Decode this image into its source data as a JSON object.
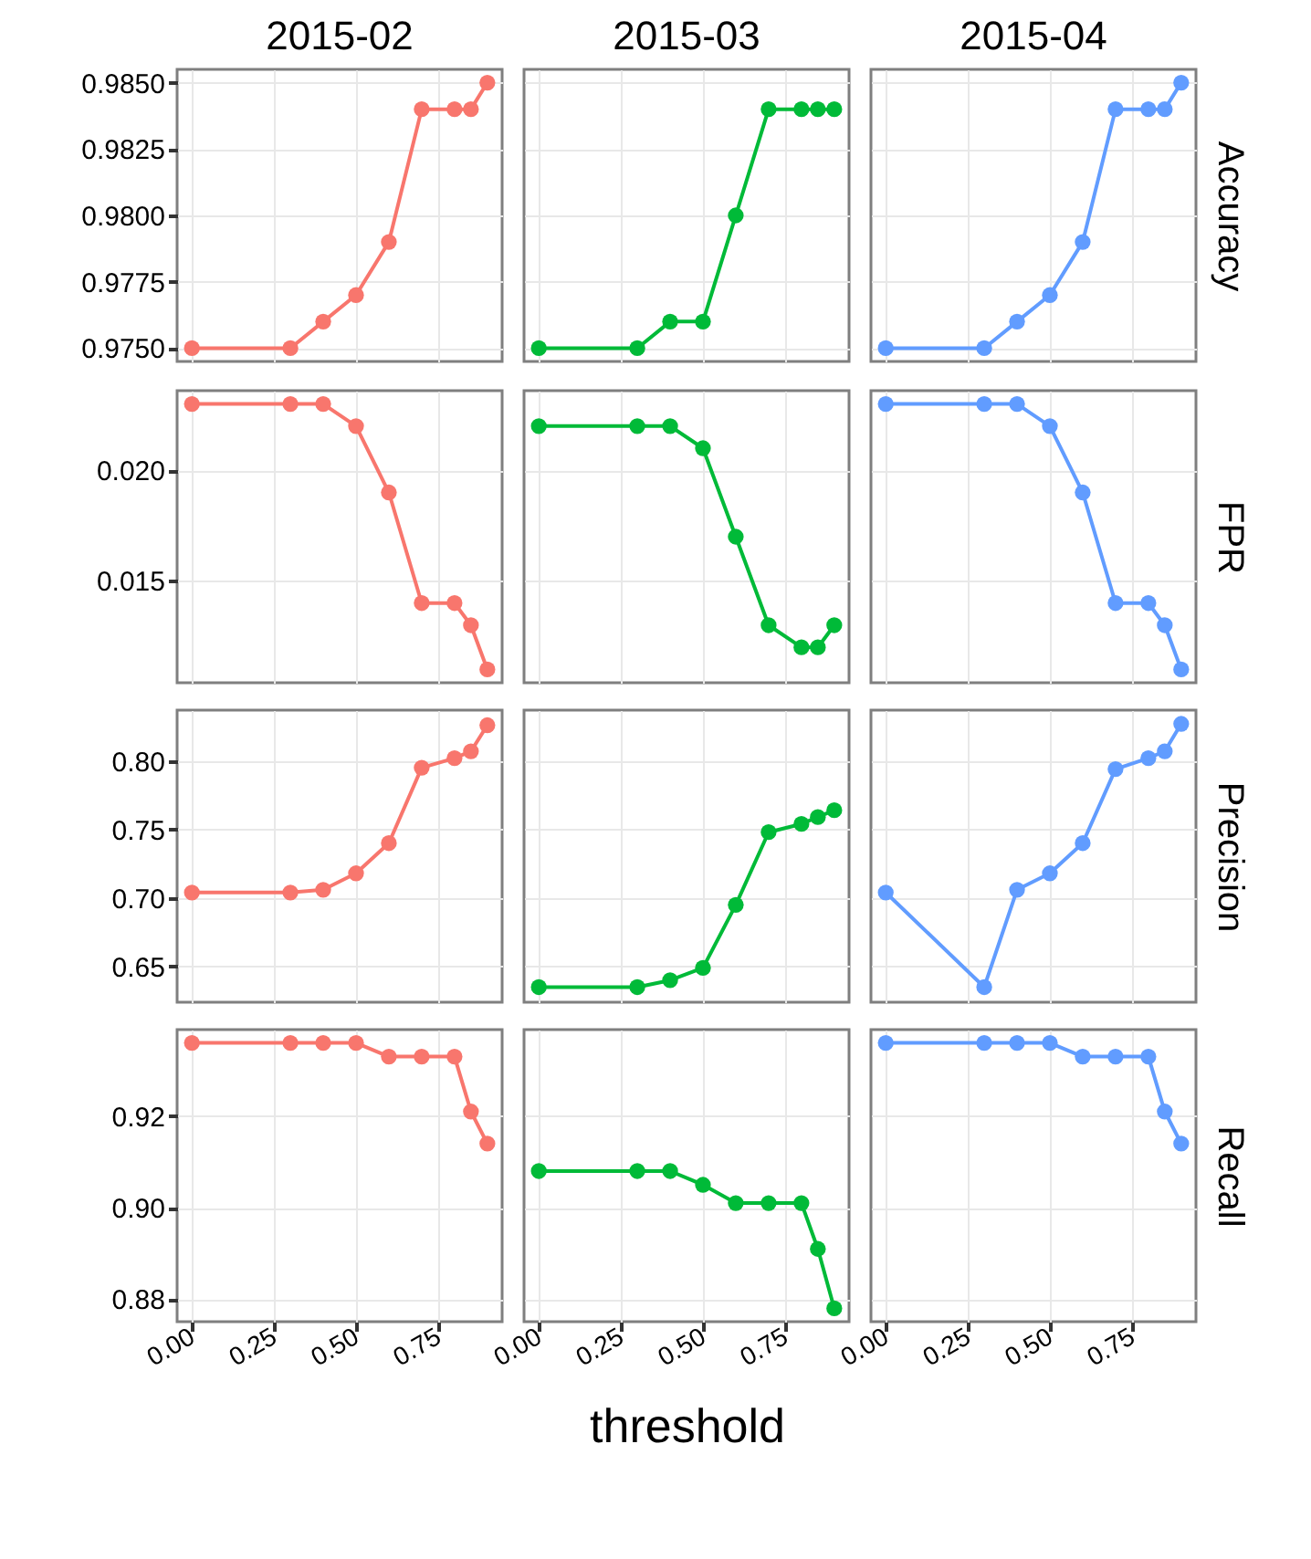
{
  "chart_data": [
    {
      "type": "line",
      "title": "2015-02",
      "x": [
        0,
        0.3,
        0.4,
        0.5,
        0.6,
        0.7,
        0.8,
        0.85,
        0.9
      ],
      "xlim": [
        -0.045,
        0.945
      ],
      "xticks": [
        0,
        0.25,
        0.5,
        0.75
      ],
      "ylim": [
        0.9745,
        0.9855
      ],
      "yticks": [
        {
          "value": 0.975,
          "label": "0.9750"
        },
        {
          "value": 0.9775,
          "label": "0.9775"
        },
        {
          "value": 0.98,
          "label": "0.9800"
        },
        {
          "value": 0.9825,
          "label": "0.9825"
        },
        {
          "value": 0.985,
          "label": "0.9850"
        }
      ],
      "tick_labels": "y",
      "grid": true,
      "marker": "circle",
      "line_style": "solid",
      "series": [
        {
          "color": "#f8766d",
          "values": [
            0.975,
            0.975,
            0.976,
            0.977,
            0.979,
            0.984,
            0.984,
            0.984,
            0.985
          ]
        }
      ]
    },
    {
      "type": "line",
      "title": "2015-03",
      "x": [
        0,
        0.3,
        0.4,
        0.5,
        0.6,
        0.7,
        0.8,
        0.85,
        0.9
      ],
      "xlim": [
        -0.045,
        0.945
      ],
      "xticks": [
        0,
        0.25,
        0.5,
        0.75
      ],
      "ylim": [
        0.9745,
        0.9855
      ],
      "yticks": [
        0.975,
        0.9775,
        0.98,
        0.9825,
        0.985
      ],
      "tick_labels": false,
      "grid": true,
      "marker": "circle",
      "line_style": "solid",
      "series": [
        {
          "color": "#00ba38",
          "values": [
            0.975,
            0.975,
            0.976,
            0.976,
            0.98,
            0.984,
            0.984,
            0.984,
            0.984
          ]
        }
      ]
    },
    {
      "type": "line",
      "title": "2015-04",
      "y2label": "Accuracy",
      "x": [
        0,
        0.3,
        0.4,
        0.5,
        0.6,
        0.7,
        0.8,
        0.85,
        0.9
      ],
      "xlim": [
        -0.045,
        0.945
      ],
      "xticks": [
        0,
        0.25,
        0.5,
        0.75
      ],
      "ylim": [
        0.9745,
        0.9855
      ],
      "yticks": [
        0.975,
        0.9775,
        0.98,
        0.9825,
        0.985
      ],
      "tick_labels": false,
      "grid": true,
      "marker": "circle",
      "line_style": "solid",
      "series": [
        {
          "color": "#619cff",
          "values": [
            0.975,
            0.975,
            0.976,
            0.977,
            0.979,
            0.984,
            0.984,
            0.984,
            0.985
          ]
        }
      ]
    },
    {
      "type": "line",
      "x": [
        0,
        0.3,
        0.4,
        0.5,
        0.6,
        0.7,
        0.8,
        0.85,
        0.9
      ],
      "xlim": [
        -0.045,
        0.945
      ],
      "xticks": [
        0,
        0.25,
        0.5,
        0.75
      ],
      "ylim": [
        0.0104,
        0.0236
      ],
      "yticks": [
        0.015,
        {
          "value": 0.02,
          "label": "0.020"
        }
      ],
      "tick_labels": "y",
      "grid": true,
      "marker": "circle",
      "line_style": "solid",
      "series": [
        {
          "color": "#f8766d",
          "values": [
            0.023,
            0.023,
            0.023,
            0.022,
            0.019,
            0.014,
            0.014,
            0.013,
            0.011
          ]
        }
      ]
    },
    {
      "type": "line",
      "x": [
        0,
        0.3,
        0.4,
        0.5,
        0.6,
        0.7,
        0.8,
        0.85,
        0.9
      ],
      "xlim": [
        -0.045,
        0.945
      ],
      "xticks": [
        0,
        0.25,
        0.5,
        0.75
      ],
      "ylim": [
        0.0104,
        0.0236
      ],
      "yticks": [
        0.015,
        0.02
      ],
      "tick_labels": false,
      "grid": true,
      "marker": "circle",
      "line_style": "solid",
      "series": [
        {
          "color": "#00ba38",
          "values": [
            0.022,
            0.022,
            0.022,
            0.021,
            0.017,
            0.013,
            0.012,
            0.012,
            0.013
          ]
        }
      ]
    },
    {
      "type": "line",
      "y2label": "FPR",
      "x": [
        0,
        0.3,
        0.4,
        0.5,
        0.6,
        0.7,
        0.8,
        0.85,
        0.9
      ],
      "xlim": [
        -0.045,
        0.945
      ],
      "xticks": [
        0,
        0.25,
        0.5,
        0.75
      ],
      "ylim": [
        0.0104,
        0.0236
      ],
      "yticks": [
        0.015,
        0.02
      ],
      "tick_labels": false,
      "grid": true,
      "marker": "circle",
      "line_style": "solid",
      "series": [
        {
          "color": "#619cff",
          "values": [
            0.023,
            0.023,
            0.023,
            0.022,
            0.019,
            0.014,
            0.014,
            0.013,
            0.011
          ]
        }
      ]
    },
    {
      "type": "line",
      "x": [
        0,
        0.3,
        0.4,
        0.5,
        0.6,
        0.7,
        0.8,
        0.85,
        0.9
      ],
      "xlim": [
        -0.045,
        0.945
      ],
      "xticks": [
        0,
        0.25,
        0.5,
        0.75
      ],
      "ylim": [
        0.624,
        0.837
      ],
      "yticks": [
        0.65,
        {
          "value": 0.7,
          "label": "0.70"
        },
        0.75,
        {
          "value": 0.8,
          "label": "0.80"
        }
      ],
      "tick_labels": "y",
      "grid": true,
      "marker": "circle",
      "line_style": "solid",
      "series": [
        {
          "color": "#f8766d",
          "values": [
            0.704,
            0.704,
            0.706,
            0.718,
            0.74,
            0.795,
            0.802,
            0.807,
            0.826
          ]
        }
      ]
    },
    {
      "type": "line",
      "x": [
        0,
        0.3,
        0.4,
        0.5,
        0.6,
        0.7,
        0.8,
        0.85,
        0.9
      ],
      "xlim": [
        -0.045,
        0.945
      ],
      "xticks": [
        0,
        0.25,
        0.5,
        0.75
      ],
      "ylim": [
        0.624,
        0.837
      ],
      "yticks": [
        0.65,
        0.7,
        0.75,
        0.8
      ],
      "tick_labels": false,
      "grid": true,
      "marker": "circle",
      "line_style": "solid",
      "series": [
        {
          "color": "#00ba38",
          "values": [
            0.635,
            0.635,
            0.64,
            0.649,
            0.695,
            0.748,
            0.754,
            0.759,
            0.764
          ]
        }
      ]
    },
    {
      "type": "line",
      "y2label": "Precision",
      "x": [
        0,
        0.3,
        0.4,
        0.5,
        0.6,
        0.7,
        0.8,
        0.85,
        0.9
      ],
      "xlim": [
        -0.045,
        0.945
      ],
      "xticks": [
        0,
        0.25,
        0.5,
        0.75
      ],
      "ylim": [
        0.624,
        0.837
      ],
      "yticks": [
        0.65,
        0.7,
        0.75,
        0.8
      ],
      "tick_labels": false,
      "grid": true,
      "marker": "circle",
      "line_style": "solid",
      "series": [
        {
          "color": "#619cff",
          "values": [
            0.704,
            0.635,
            0.706,
            0.718,
            0.74,
            0.794,
            0.802,
            0.807,
            0.827
          ]
        }
      ]
    },
    {
      "type": "line",
      "x": [
        0,
        0.3,
        0.4,
        0.5,
        0.6,
        0.7,
        0.8,
        0.85,
        0.9
      ],
      "xlim": [
        -0.045,
        0.945
      ],
      "xticks": [
        {
          "value": 0,
          "label": "0.00"
        },
        {
          "value": 0.25,
          "label": "0.25"
        },
        {
          "value": 0.5,
          "label": "0.50"
        },
        {
          "value": 0.75,
          "label": "0.75"
        }
      ],
      "ylim": [
        0.8751,
        0.9389
      ],
      "yticks": [
        0.88,
        {
          "value": 0.9,
          "label": "0.90"
        },
        0.92
      ],
      "grid": true,
      "marker": "circle",
      "line_style": "solid",
      "series": [
        {
          "color": "#f8766d",
          "values": [
            0.936,
            0.936,
            0.936,
            0.936,
            0.933,
            0.933,
            0.933,
            0.921,
            0.914
          ]
        }
      ]
    },
    {
      "type": "line",
      "xlabel": "threshold",
      "x": [
        0,
        0.3,
        0.4,
        0.5,
        0.6,
        0.7,
        0.8,
        0.85,
        0.9
      ],
      "xlim": [
        -0.045,
        0.945
      ],
      "xticks": [
        {
          "value": 0,
          "label": "0.00"
        },
        {
          "value": 0.25,
          "label": "0.25"
        },
        {
          "value": 0.5,
          "label": "0.50"
        },
        {
          "value": 0.75,
          "label": "0.75"
        }
      ],
      "ylim": [
        0.8751,
        0.9389
      ],
      "yticks": [
        0.88,
        0.9,
        0.92
      ],
      "tick_labels": "x",
      "grid": true,
      "marker": "circle",
      "line_style": "solid",
      "series": [
        {
          "color": "#00ba38",
          "values": [
            0.908,
            0.908,
            0.908,
            0.905,
            0.901,
            0.901,
            0.901,
            0.891,
            0.878
          ]
        }
      ]
    },
    {
      "type": "line",
      "y2label": "Recall",
      "x": [
        0,
        0.3,
        0.4,
        0.5,
        0.6,
        0.7,
        0.8,
        0.85,
        0.9
      ],
      "xlim": [
        -0.045,
        0.945
      ],
      "xticks": [
        {
          "value": 0,
          "label": "0.00"
        },
        {
          "value": 0.25,
          "label": "0.25"
        },
        {
          "value": 0.5,
          "label": "0.50"
        },
        {
          "value": 0.75,
          "label": "0.75"
        }
      ],
      "ylim": [
        0.8751,
        0.9389
      ],
      "yticks": [
        0.88,
        0.9,
        0.92
      ],
      "tick_labels": "x",
      "grid": true,
      "marker": "circle",
      "line_style": "solid",
      "series": [
        {
          "color": "#619cff",
          "values": [
            0.936,
            0.936,
            0.936,
            0.936,
            0.933,
            0.933,
            0.933,
            0.921,
            0.914
          ]
        }
      ]
    }
  ]
}
